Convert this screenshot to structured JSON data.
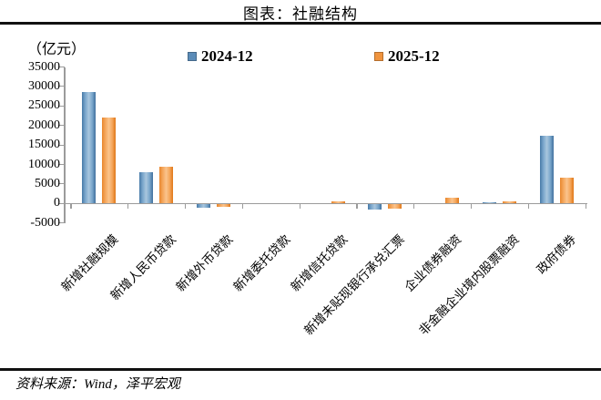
{
  "title": "图表：社融结构",
  "y_axis_unit": "（亿元）",
  "source": "资料来源：Wind，泽平宏观",
  "chart_data": {
    "type": "bar",
    "title": "图表：社融结构",
    "ylabel": "（亿元）",
    "ylim": [
      -5000,
      35000
    ],
    "yticks": [
      35000,
      30000,
      25000,
      20000,
      15000,
      10000,
      5000,
      0,
      -5000
    ],
    "grid": false,
    "legend_position": "top",
    "categories": [
      "新增社融规模",
      "新增人民币贷款",
      "新增外币贷款",
      "新增委托贷款",
      "新增信托贷款",
      "新增未贴现银行承兑汇票",
      "企业债券融资",
      "非金融企业境内股票融资",
      "政府债券"
    ],
    "series": [
      {
        "name": "2024-12",
        "color": "#4f81bd",
        "values": [
          28500,
          8100,
          -800,
          -50,
          50,
          -1400,
          100,
          350,
          17300
        ]
      },
      {
        "name": "2025-12",
        "color": "#f79646",
        "values": [
          22100,
          9400,
          -700,
          150,
          550,
          -1200,
          1400,
          600,
          6500
        ]
      }
    ]
  }
}
